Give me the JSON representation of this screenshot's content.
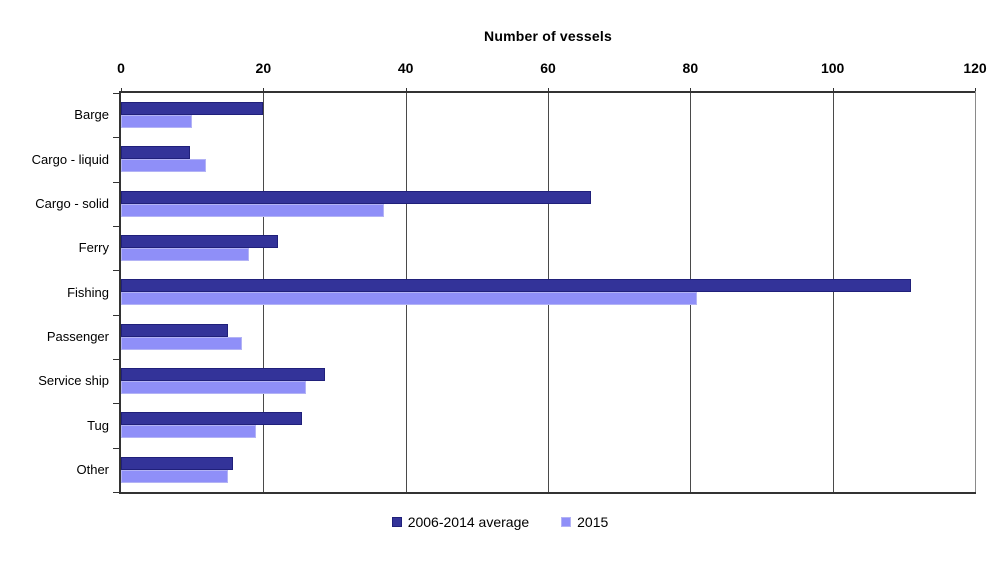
{
  "chart_data": {
    "type": "bar",
    "orientation": "horizontal",
    "title": "Number of vessels",
    "categories": [
      "Barge",
      "Cargo - liquid",
      "Cargo - solid",
      "Ferry",
      "Fishing",
      "Passenger",
      "Service ship",
      "Tug",
      "Other"
    ],
    "series": [
      {
        "name": "2006-2014 average",
        "color": "#333399",
        "border_color": "#20207a",
        "values": [
          20,
          9.7,
          66,
          22,
          111,
          15,
          28.6,
          25.5,
          15.7
        ]
      },
      {
        "name": "2015",
        "color": "#8f8ff8",
        "border_color": "#b3b3f5",
        "values": [
          10,
          12,
          37,
          18,
          81,
          17,
          26,
          19,
          15
        ]
      }
    ],
    "xlim": [
      0,
      120
    ],
    "xticks": [
      0,
      20,
      40,
      60,
      80,
      100,
      120
    ],
    "xlabel": "",
    "ylabel": "",
    "grid": true,
    "gridline_color": "#4a4a4a",
    "legend_position": "bottom"
  },
  "colors": {
    "axis": "#333333",
    "right_border": "#8a8a8a",
    "background": "#ffffff",
    "text": "#000000"
  }
}
